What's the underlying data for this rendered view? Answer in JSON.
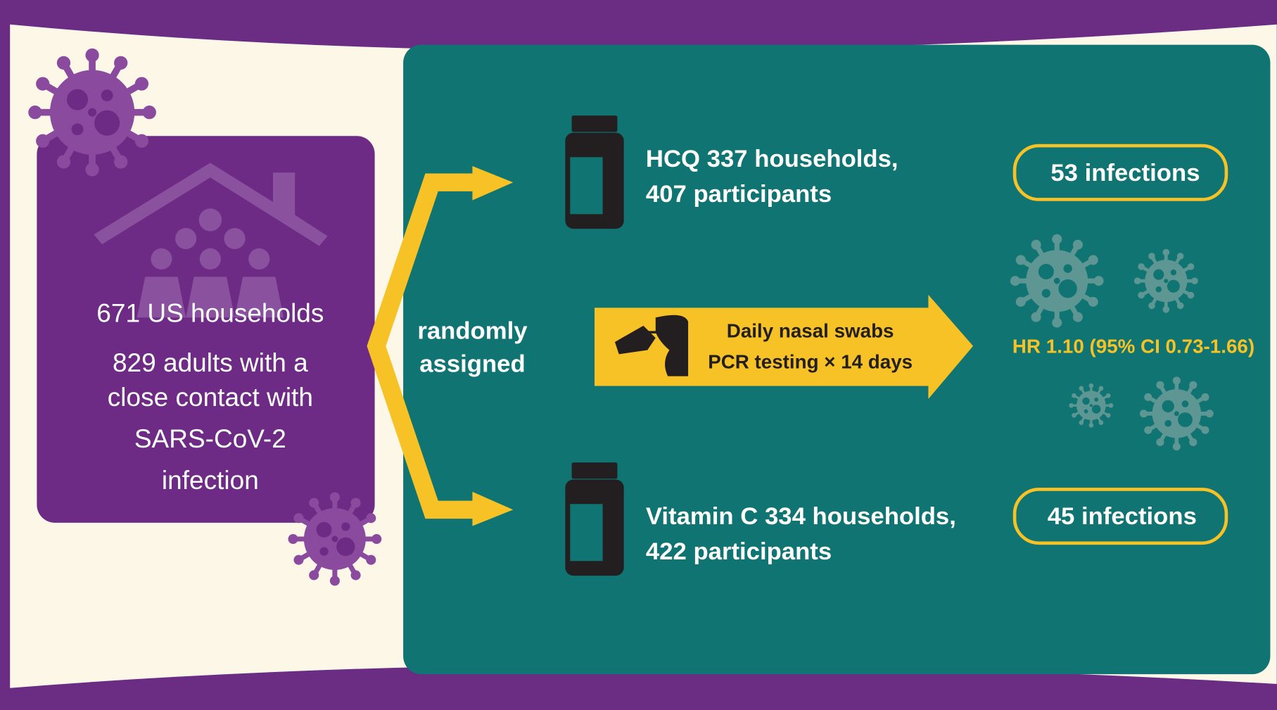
{
  "population": {
    "lines": [
      "671 US households",
      "829 adults with a",
      "close contact with",
      "SARS-CoV-2",
      "infection"
    ]
  },
  "assignment": {
    "lines": [
      "randomly",
      "assigned"
    ]
  },
  "arms": [
    {
      "lines": [
        "HCQ 337 households,",
        "407 participants"
      ],
      "outcome": "53 infections"
    },
    {
      "lines": [
        "Vitamin C 334 households,",
        "422 participants"
      ],
      "outcome": "45 infections"
    }
  ],
  "procedure": {
    "lines": [
      "Daily nasal swabs",
      "PCR testing × 14 days"
    ]
  },
  "result": "HR 1.10 (95% CI 0.73-1.66)"
}
